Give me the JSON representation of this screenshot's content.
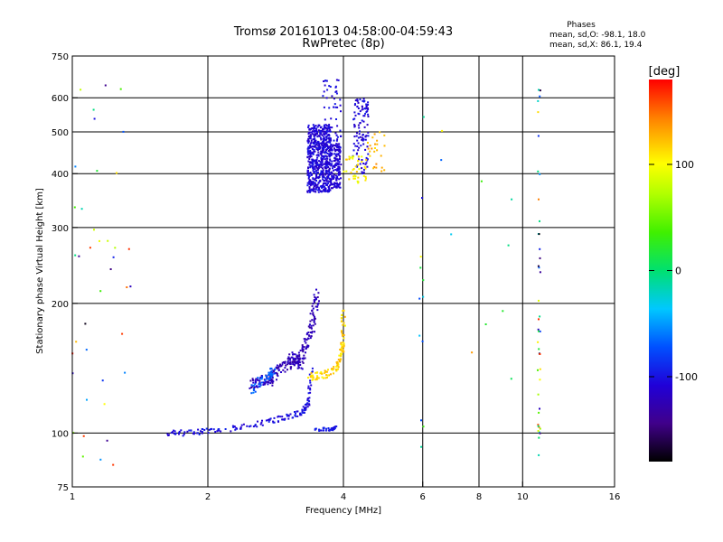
{
  "title_line1": "Tromsø 20161013 04:58:00-04:59:43",
  "title_line2": "RwPretec (8p)",
  "phases": {
    "heading": "Phases",
    "o_line": "mean, sd,O: -98.1, 18.0",
    "x_line": "mean, sd,X:  86.1, 19.4"
  },
  "chart_data": {
    "type": "scatter",
    "xlabel": "Frequency [MHz]",
    "ylabel": "Stationary phase Virtual Height [km]",
    "x_scale": "log",
    "y_scale": "log",
    "xlim": [
      1,
      16
    ],
    "ylim": [
      75,
      750
    ],
    "x_ticks": [
      {
        "v": 1,
        "label": "1"
      },
      {
        "v": 2,
        "label": "2"
      },
      {
        "v": 4,
        "label": "4"
      },
      {
        "v": 6,
        "label": "6"
      },
      {
        "v": 8,
        "label": "8"
      },
      {
        "v": 10,
        "label": "10"
      },
      {
        "v": 16,
        "label": "16"
      }
    ],
    "x_grid": [
      2,
      4,
      6,
      8,
      10
    ],
    "y_ticks": [
      {
        "v": 75,
        "label": "75"
      },
      {
        "v": 100,
        "label": "100"
      },
      {
        "v": 200,
        "label": "200"
      },
      {
        "v": 300,
        "label": "300"
      },
      {
        "v": 400,
        "label": "400"
      },
      {
        "v": 500,
        "label": "500"
      },
      {
        "v": 600,
        "label": "600"
      },
      {
        "v": 750,
        "label": "750"
      }
    ],
    "y_grid": [
      100,
      200,
      300,
      400,
      500,
      600
    ],
    "colorbar": {
      "label": "[deg]",
      "range": [
        -180,
        180
      ],
      "ticks": [
        {
          "v": 100,
          "label": "100"
        },
        {
          "v": 0,
          "label": "0"
        },
        {
          "v": -100,
          "label": "-100"
        }
      ]
    },
    "traces": [
      {
        "kind": "blob",
        "f_min": 3.33,
        "f_max": 3.75,
        "h_min": 362,
        "h_max": 520,
        "phase_min": -120,
        "phase_max": -95,
        "count": 600
      },
      {
        "kind": "blob",
        "f_min": 3.75,
        "f_max": 3.95,
        "h_min": 370,
        "h_max": 470,
        "phase_min": -120,
        "phase_max": -100,
        "count": 150
      },
      {
        "kind": "blob",
        "f_min": 3.6,
        "f_max": 3.95,
        "h_min": 470,
        "h_max": 665,
        "phase_min": -115,
        "phase_max": -95,
        "count": 50
      },
      {
        "kind": "blob",
        "f_min": 4.2,
        "f_max": 4.55,
        "h_min": 400,
        "h_max": 600,
        "phase_min": -120,
        "phase_max": -95,
        "count": 110
      },
      {
        "kind": "blob",
        "f_min": 4.0,
        "f_max": 4.5,
        "h_min": 380,
        "h_max": 440,
        "phase_min": 90,
        "phase_max": 125,
        "count": 40
      },
      {
        "kind": "blob",
        "f_min": 4.5,
        "f_max": 5.0,
        "h_min": 405,
        "h_max": 500,
        "phase_min": 110,
        "phase_max": 140,
        "count": 25
      },
      {
        "kind": "curve",
        "points": [
          [
            1.6,
            100
          ],
          [
            1.8,
            100
          ],
          [
            2.0,
            101
          ],
          [
            2.2,
            102
          ],
          [
            2.45,
            104
          ],
          [
            2.7,
            106
          ],
          [
            2.9,
            108
          ],
          [
            3.1,
            110
          ],
          [
            3.25,
            112
          ],
          [
            3.35,
            118
          ],
          [
            3.4,
            140
          ]
        ],
        "jitter": 0.015,
        "phase_min": -115,
        "phase_max": -90,
        "count": 160
      },
      {
        "kind": "curve",
        "points": [
          [
            2.5,
            128
          ],
          [
            2.6,
            134
          ],
          [
            2.75,
            132
          ],
          [
            2.85,
            140
          ],
          [
            3.0,
            143
          ],
          [
            3.1,
            150
          ],
          [
            3.2,
            145
          ],
          [
            3.3,
            160
          ],
          [
            3.4,
            175
          ],
          [
            3.45,
            195
          ],
          [
            3.5,
            210
          ]
        ],
        "jitter": 0.03,
        "phase_min": -135,
        "phase_max": -110,
        "count": 260
      },
      {
        "kind": "curve",
        "points": [
          [
            2.5,
            126
          ],
          [
            2.6,
            131
          ],
          [
            2.75,
            136
          ],
          [
            2.8,
            140
          ]
        ],
        "jitter": 0.025,
        "phase_min": -80,
        "phase_max": -55,
        "count": 50
      },
      {
        "kind": "curve",
        "points": [
          [
            3.35,
            135
          ],
          [
            3.6,
            136
          ],
          [
            3.8,
            140
          ],
          [
            3.95,
            148
          ],
          [
            4.0,
            165
          ],
          [
            4.0,
            195
          ]
        ],
        "jitter": 0.02,
        "phase_min": 100,
        "phase_max": 130,
        "count": 110
      },
      {
        "kind": "curve",
        "points": [
          [
            3.45,
            102
          ],
          [
            3.75,
            102
          ],
          [
            3.85,
            103
          ]
        ],
        "jitter": 0.008,
        "phase_min": -105,
        "phase_max": -90,
        "count": 40
      },
      {
        "kind": "blob",
        "f_min": 10.8,
        "f_max": 10.95,
        "h_min": 88,
        "h_max": 650,
        "phase_min": -180,
        "phase_max": 180,
        "count": 42
      },
      {
        "kind": "blob",
        "f_min": 1.0,
        "f_max": 1.35,
        "h_min": 80,
        "h_max": 650,
        "phase_min": -180,
        "phase_max": 180,
        "count": 40
      },
      {
        "kind": "blob",
        "f_min": 5.9,
        "f_max": 6.05,
        "h_min": 92,
        "h_max": 600,
        "phase_min": -120,
        "phase_max": 130,
        "count": 12
      },
      {
        "kind": "blob",
        "f_min": 6.2,
        "f_max": 9.8,
        "h_min": 120,
        "h_max": 560,
        "phase_min": -80,
        "phase_max": 140,
        "count": 10
      }
    ]
  }
}
